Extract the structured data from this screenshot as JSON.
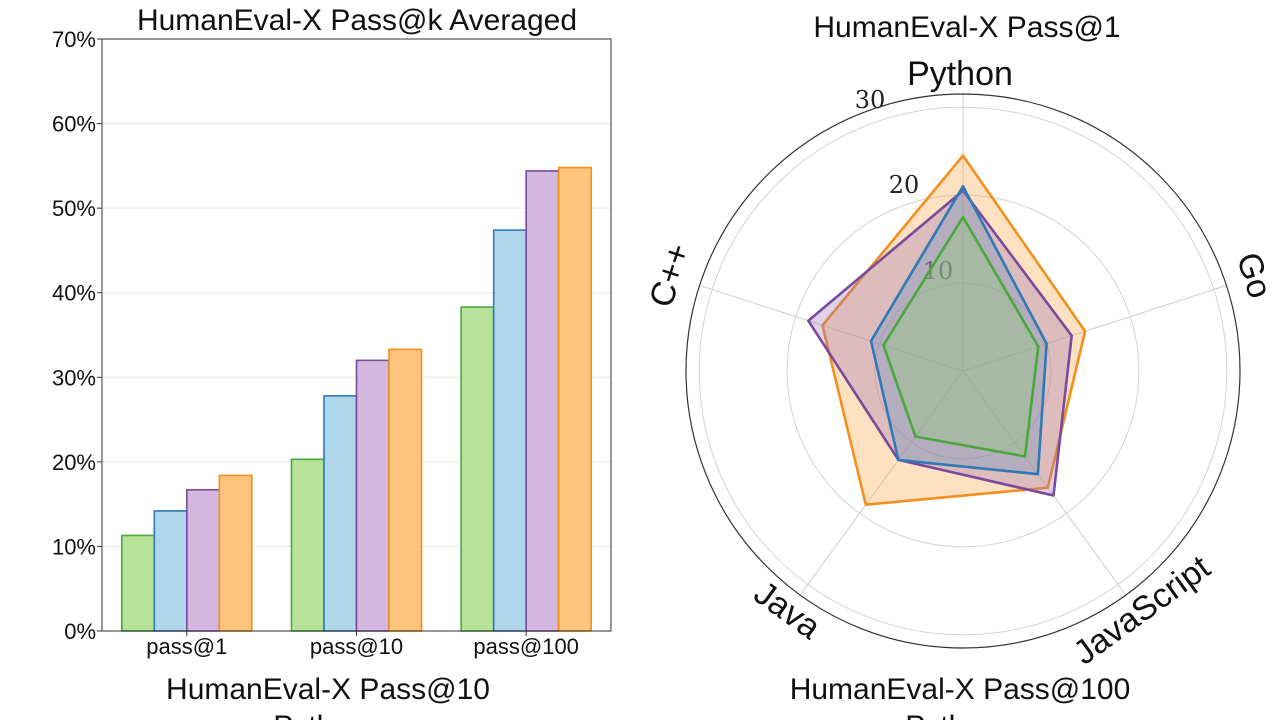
{
  "chart_data": [
    {
      "type": "bar",
      "title": "HumanEval-X Pass@k Averaged",
      "categories": [
        "pass@1",
        "pass@10",
        "pass@100"
      ],
      "y_ticks": [
        "0%",
        "10%",
        "20%",
        "30%",
        "40%",
        "50%",
        "60%",
        "70%"
      ],
      "ylim": [
        0,
        70
      ],
      "grid": true,
      "series": [
        {
          "color": "#b8e29a",
          "edge": "#4aa83b",
          "values": [
            11.3,
            20.3,
            38.3
          ]
        },
        {
          "color": "#b0d6ea",
          "edge": "#2f79b5",
          "values": [
            14.2,
            27.8,
            47.4
          ]
        },
        {
          "color": "#d4b7de",
          "edge": "#7a4a9d",
          "values": [
            16.7,
            32.0,
            54.4
          ]
        },
        {
          "color": "#fdc47e",
          "edge": "#f3901d",
          "values": [
            18.4,
            33.3,
            54.8
          ]
        }
      ]
    },
    {
      "type": "radar",
      "title": "HumanEval-X Pass@1",
      "axes": [
        "Python",
        "Go",
        "JavaScript",
        "Java",
        "C++"
      ],
      "r_ticks": [
        "10",
        "20",
        "30"
      ],
      "rlim": [
        0,
        31.5
      ],
      "series": [
        {
          "color": "#f3901d",
          "fill": "#f8a13a",
          "values": [
            24.5,
            14.6,
            16.4,
            18.8,
            16.8
          ]
        },
        {
          "color": "#7a4a9d",
          "fill": "#9b6fb8",
          "values": [
            20.5,
            13.0,
            17.5,
            12.5,
            18.5
          ]
        },
        {
          "color": "#2f79b5",
          "fill": "#5a8fbf",
          "values": [
            21.0,
            10.0,
            14.5,
            12.5,
            11.0
          ]
        },
        {
          "color": "#4aa83b",
          "fill": "#8fcf70",
          "values": [
            17.5,
            9.0,
            12.0,
            9.2,
            9.5
          ]
        }
      ]
    }
  ],
  "captions": {
    "left": {
      "title": "HumanEval-X Pass@10",
      "subtitle": "Python"
    },
    "right": {
      "title": "HumanEval-X Pass@100",
      "subtitle": "Python"
    }
  }
}
